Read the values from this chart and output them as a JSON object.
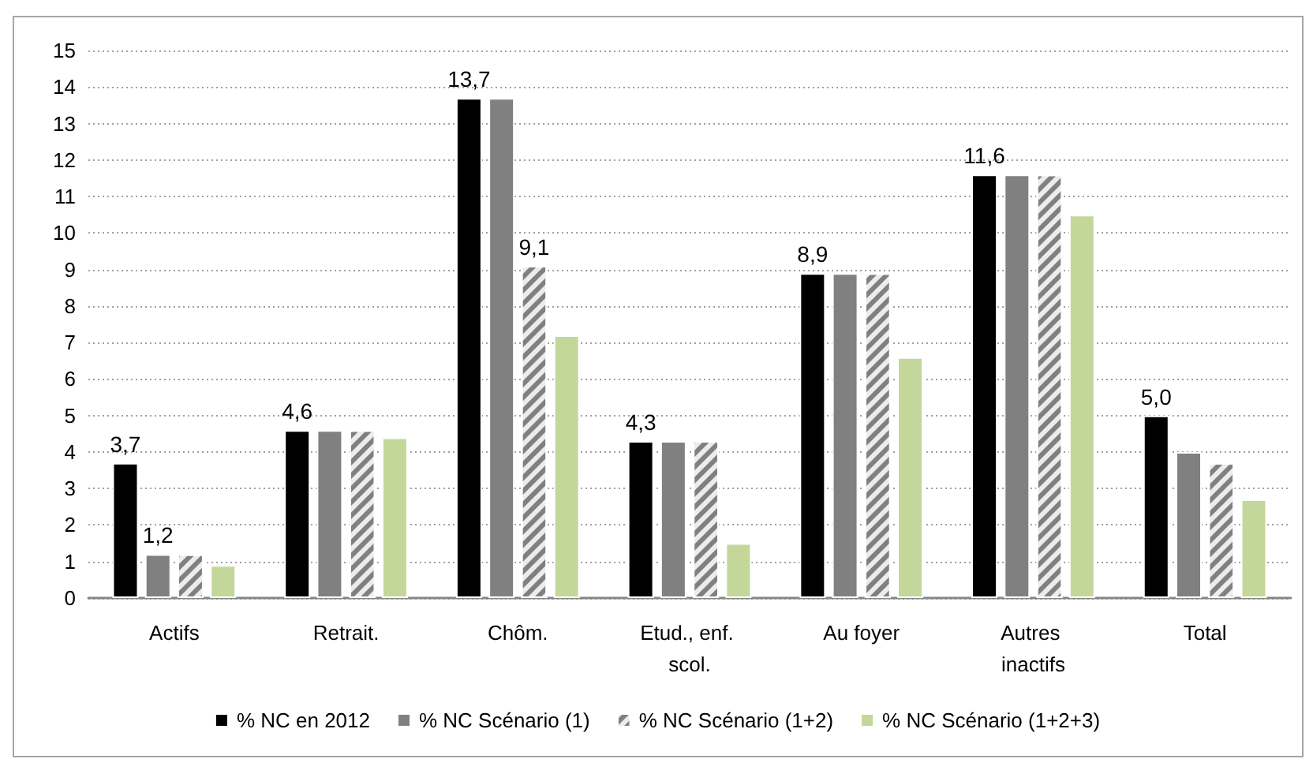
{
  "chart_data": {
    "type": "bar",
    "categories": [
      "Actifs",
      "Retrait.",
      "Chôm.",
      "Etud., enf. scol.",
      "Au foyer",
      "Autres inactifs",
      "Total"
    ],
    "series": [
      {
        "name": "% NC en 2012",
        "color": "#000000",
        "values": [
          3.7,
          4.6,
          13.7,
          4.3,
          8.9,
          11.6,
          5.0
        ],
        "value_labels": [
          "3,7",
          "4,6",
          "13,7",
          "4,3",
          "8,9",
          "11,6",
          "5,0"
        ]
      },
      {
        "name": "% NC Scénario (1)",
        "color": "#808080",
        "values": [
          1.2,
          4.6,
          13.7,
          4.3,
          8.9,
          11.6,
          4.0
        ],
        "value_labels": [
          "1,2",
          null,
          null,
          null,
          null,
          null,
          null
        ]
      },
      {
        "name": "% NC Scénario (1+2)",
        "color": "#808080",
        "values": [
          1.2,
          4.6,
          9.1,
          4.3,
          8.9,
          11.6,
          3.7
        ],
        "value_labels": [
          null,
          null,
          "9,1",
          null,
          null,
          null,
          null
        ]
      },
      {
        "name": "% NC Scénario (1+2+3)",
        "color": "#c4d79b",
        "values": [
          0.9,
          4.4,
          7.2,
          1.5,
          6.6,
          10.5,
          2.7
        ]
      }
    ],
    "ylim": [
      0,
      15
    ],
    "yticks": [
      0,
      1,
      2,
      3,
      4,
      5,
      6,
      7,
      8,
      9,
      10,
      11,
      12,
      13,
      14,
      15
    ],
    "grid": "y",
    "legend": "bottom"
  }
}
